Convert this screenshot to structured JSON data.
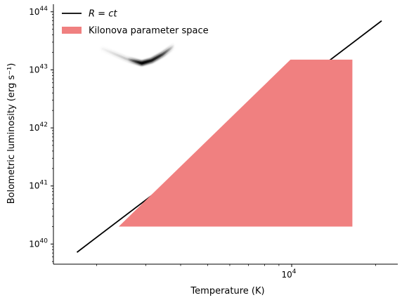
{
  "chart_data": {
    "type": "line",
    "xlabel": "Temperature (K)",
    "ylabel": "Bolometric luminosity (erg s⁻¹)",
    "xscale": "log",
    "yscale": "log",
    "xlim": [
      1400,
      24000
    ],
    "ylim": [
      4.5e+39,
      1.35e+44
    ],
    "x_ticks": [
      {
        "value": 10000,
        "label": "10",
        "exp": "4"
      }
    ],
    "y_ticks": [
      {
        "value": 1e+40,
        "label": "10",
        "exp": "40"
      },
      {
        "value": 1e+41,
        "label": "10",
        "exp": "41"
      },
      {
        "value": 1e+42,
        "label": "10",
        "exp": "42"
      },
      {
        "value": 1e+43,
        "label": "10",
        "exp": "43"
      },
      {
        "value": 1e+44,
        "label": "10",
        "exp": "44"
      }
    ],
    "x_minor_ticks": [
      2000,
      3000,
      4000,
      5000,
      6000,
      7000,
      8000,
      9000,
      20000
    ],
    "grid": false,
    "legend_position": "top-left",
    "series": [
      {
        "name": "R = ct",
        "kind": "line",
        "color": "#000000",
        "x": [
          1700,
          21000
        ],
        "y": [
          7.2e+39,
          7e+43
        ]
      },
      {
        "name": "Kilonova parameter space",
        "kind": "filled-region",
        "color": "#f08080",
        "x": [
          2400,
          9900,
          16500,
          16500,
          2400
        ],
        "y": [
          2e+40,
          1.5e+43,
          1.5e+43,
          2e+40,
          2e+40
        ]
      },
      {
        "kind": "density-track",
        "color": "#000000",
        "x": [
          2100,
          2550,
          2900,
          3150,
          3450,
          3800
        ],
        "y": [
          2.3e+43,
          1.55e+43,
          1.3e+43,
          1.45e+43,
          1.85e+43,
          2.6e+43
        ]
      }
    ]
  }
}
